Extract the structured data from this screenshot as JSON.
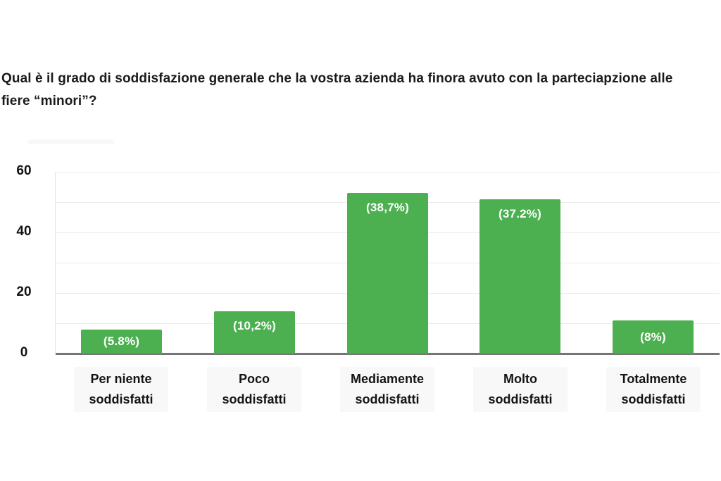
{
  "page": {
    "background": "#ffffff"
  },
  "title": {
    "text": "Qual è il grado di soddisfazione generale che la vostra azienda ha finora avuto con la parteciapzione alle fiere “minori”?"
  },
  "chart_data": {
    "type": "bar",
    "title": "Qual è il grado di soddisfazione generale che la vostra azienda ha finora avuto con la parteciapzione alle fiere “minori”?",
    "categories": [
      "Per niente soddisfatti",
      "Poco soddisfatti",
      "Mediamente soddisfatti",
      "Molto soddisfatti",
      "Totalmente soddisfatti"
    ],
    "category_lines": [
      [
        "Per niente",
        "soddisfatti"
      ],
      [
        "Poco",
        "soddisfatti"
      ],
      [
        "Mediamente",
        "soddisfatti"
      ],
      [
        "Molto",
        "soddisfatti"
      ],
      [
        "Totalmente",
        "soddisfatti"
      ]
    ],
    "values": [
      8,
      14,
      53,
      51,
      11
    ],
    "percent_labels": [
      "(5.8%)",
      "(10,2%)",
      "(38,7%)",
      "(37.2%)",
      "(8%)"
    ],
    "xlabel": "",
    "ylabel": "",
    "ylim": [
      0,
      60
    ],
    "yticks": [
      60,
      40,
      20,
      0
    ],
    "gridline_values": [
      60,
      50,
      40,
      30,
      20,
      10
    ],
    "grid": true,
    "legend_position": "none",
    "colors": {
      "bar": "#4caf50",
      "bar_label_text": "#ffffff",
      "axis_line": "#757575",
      "gridline": "#ebebeb",
      "plot_border": "#e3e3e3",
      "category_chip_bg": "#f8f8f9",
      "text": "#1a1a1a"
    }
  }
}
